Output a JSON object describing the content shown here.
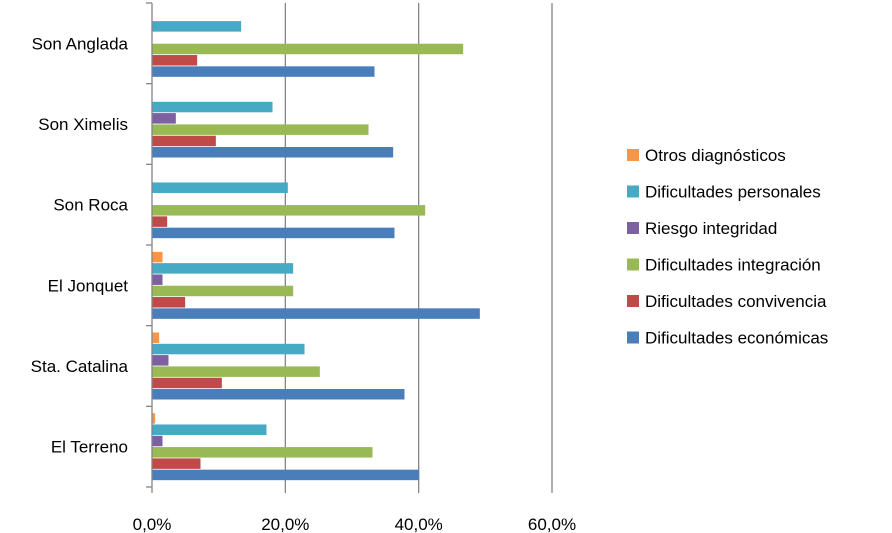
{
  "chart_data": {
    "type": "bar",
    "orientation": "horizontal",
    "categories": [
      "El Terreno",
      "Sta. Catalina",
      "El Jonquet",
      "Son Roca",
      "Son Ximelis",
      "Son Anglada"
    ],
    "series": [
      {
        "name": "Dificultades económicas",
        "color": "#4a7ebb",
        "values": [
          40.0,
          37.8,
          49.1,
          36.3,
          36.1,
          33.3
        ]
      },
      {
        "name": "Dificultades convivencia",
        "color": "#be4b48",
        "values": [
          7.2,
          10.4,
          4.9,
          2.2,
          9.5,
          6.7
        ]
      },
      {
        "name": "Dificultades integración",
        "color": "#98b954",
        "values": [
          33.0,
          25.1,
          21.1,
          40.9,
          32.4,
          46.6
        ]
      },
      {
        "name": "Riesgo integridad",
        "color": "#7d60a0",
        "values": [
          1.5,
          2.4,
          1.5,
          0.0,
          3.5,
          0.0
        ]
      },
      {
        "name": "Dificultades personales",
        "color": "#46aac5",
        "values": [
          17.1,
          22.8,
          21.1,
          20.3,
          18.0,
          13.3
        ]
      },
      {
        "name": "Otros diagnósticos",
        "color": "#f79646",
        "values": [
          0.4,
          1.0,
          1.5,
          0.0,
          0.0,
          0.0
        ]
      }
    ],
    "xticks": [
      "0,0%",
      "20,0%",
      "40,0%",
      "60,0%"
    ],
    "xlim": [
      0,
      60
    ],
    "grid": "vertical",
    "legend_position": "right",
    "title": "",
    "xlabel": "",
    "ylabel": ""
  }
}
